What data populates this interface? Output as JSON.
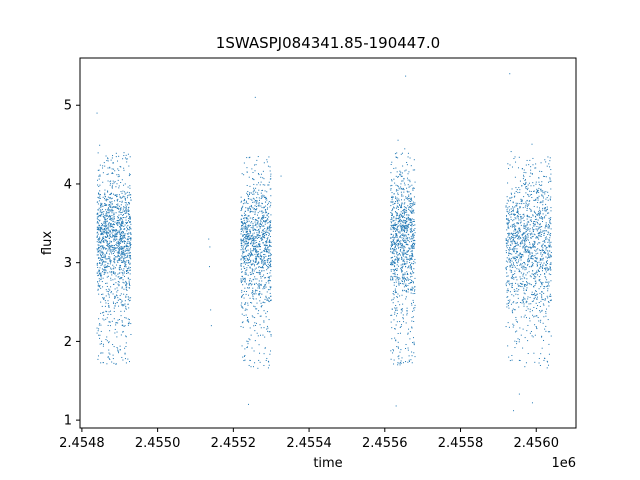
{
  "chart_data": {
    "type": "scatter",
    "title": "1SWASPJ084341.85-190447.0",
    "xlabel": "time",
    "ylabel": "flux",
    "x_offset_label": "1e6",
    "xlim": [
      2454795,
      2456105
    ],
    "ylim": [
      0.9,
      5.6
    ],
    "x_ticks": [
      {
        "value": 2454800,
        "label": "2.4548"
      },
      {
        "value": 2455000,
        "label": "2.4550"
      },
      {
        "value": 2455200,
        "label": "2.4552"
      },
      {
        "value": 2455400,
        "label": "2.4554"
      },
      {
        "value": 2455600,
        "label": "2.4556"
      },
      {
        "value": 2455800,
        "label": "2.4558"
      },
      {
        "value": 2456000,
        "label": "2.4560"
      }
    ],
    "y_ticks": [
      {
        "value": 1,
        "label": "1"
      },
      {
        "value": 2,
        "label": "2"
      },
      {
        "value": 3,
        "label": "3"
      },
      {
        "value": 4,
        "label": "4"
      },
      {
        "value": 5,
        "label": "5"
      }
    ],
    "grid": false,
    "marker_color": "#1f77b4",
    "seasons": [
      {
        "x_start": 2454840,
        "x_end": 2454930,
        "points": 1400,
        "center": 3.3,
        "spread": 0.35
      },
      {
        "x_start": 2455220,
        "x_end": 2455300,
        "points": 1100,
        "center": 3.25,
        "spread": 0.35
      },
      {
        "x_start": 2455615,
        "x_end": 2455680,
        "points": 1000,
        "center": 3.3,
        "spread": 0.38
      },
      {
        "x_start": 2455920,
        "x_end": 2456040,
        "points": 1300,
        "center": 3.25,
        "spread": 0.4
      }
    ],
    "sparse_points": [
      {
        "x": 2455135,
        "y": 3.3
      },
      {
        "x": 2455138,
        "y": 3.2
      },
      {
        "x": 2455140,
        "y": 2.4
      },
      {
        "x": 2455142,
        "y": 2.2
      },
      {
        "x": 2455137,
        "y": 2.95
      },
      {
        "x": 2455326,
        "y": 4.1
      },
      {
        "x": 2455655,
        "y": 5.37
      },
      {
        "x": 2455930,
        "y": 5.4
      },
      {
        "x": 2455258,
        "y": 5.1
      },
      {
        "x": 2454840,
        "y": 4.9
      },
      {
        "x": 2455240,
        "y": 1.2
      },
      {
        "x": 2455630,
        "y": 1.18
      },
      {
        "x": 2455940,
        "y": 1.12
      },
      {
        "x": 2455990,
        "y": 1.22
      }
    ]
  }
}
